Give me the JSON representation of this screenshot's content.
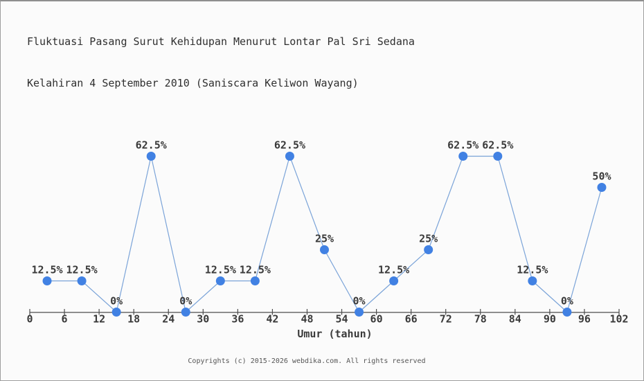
{
  "page": {
    "background": "#fbfbfb",
    "footer": "Copyrights (c) 2015-2026 webdika.com. All rights reserved"
  },
  "chart_data": {
    "type": "line",
    "title_line1": "Fluktuasi Pasang Surut Kehidupan Menurut Lontar Pal Sri Sedana",
    "title_line2": "Kelahiran 4 September 2010 (Saniscara Keliwon Wayang)",
    "xlabel": "Umur (tahun)",
    "ylabel": "",
    "x": [
      3,
      9,
      15,
      21,
      27,
      33,
      39,
      45,
      51,
      57,
      63,
      69,
      75,
      81,
      87,
      93,
      99
    ],
    "values": [
      12.5,
      12.5,
      0,
      62.5,
      0,
      12.5,
      12.5,
      62.5,
      25,
      0,
      12.5,
      25,
      62.5,
      62.5,
      12.5,
      0,
      50
    ],
    "point_labels": [
      "12.5%",
      "12.5%",
      "0%",
      "62.5%",
      "0%",
      "12.5%",
      "12.5%",
      "62.5%",
      "25%",
      "0%",
      "12.5%",
      "25%",
      "62.5%",
      "62.5%",
      "12.5%",
      "0%",
      "50%"
    ],
    "x_ticks": [
      0,
      6,
      12,
      18,
      24,
      30,
      36,
      42,
      48,
      54,
      60,
      66,
      72,
      78,
      84,
      90,
      96,
      102
    ],
    "xlim": [
      0,
      102
    ],
    "ylim": [
      0,
      70
    ],
    "y_unit": "%",
    "grid": false,
    "legend": false,
    "colors": {
      "line": "#7aa3d8",
      "marker": "#4181e3",
      "axis": "#4d4d4d",
      "text": "#3a3a3a",
      "footer_text": "#555555"
    }
  }
}
